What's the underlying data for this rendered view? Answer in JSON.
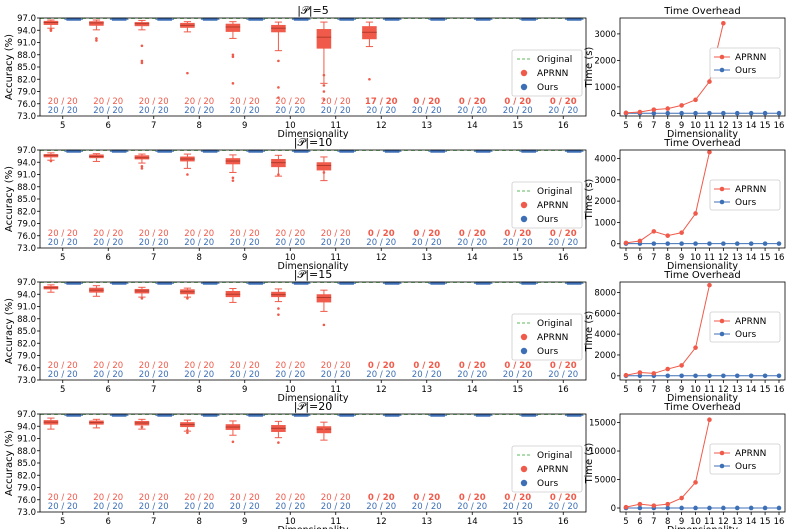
{
  "chart_data": {
    "type": "box_and_line_grid",
    "rows": [
      {
        "box": {
          "title": "|𝒫|=5",
          "xlabel": "Dimensionality",
          "ylabel": "Accuracy (%)",
          "yticks": [
            "73.0",
            "76.0",
            "79.0",
            "82.0",
            "85.0",
            "88.0",
            "91.0",
            "94.0",
            "97.0"
          ],
          "ylim": [
            73.0,
            97.0
          ],
          "categories": [
            5,
            6,
            7,
            8,
            9,
            10,
            11,
            12,
            13,
            14,
            15,
            16
          ],
          "original": 96.9,
          "aprnn": [
            {
              "med": 95.9,
              "q1": 95.3,
              "q3": 96.3,
              "lo": 94.5,
              "hi": 96.5,
              "fl": [
                94.2,
                93.9
              ]
            },
            {
              "med": 95.8,
              "q1": 95.1,
              "q3": 96.2,
              "lo": 94.1,
              "hi": 96.5,
              "fl": [
                92.0,
                91.5
              ]
            },
            {
              "med": 95.6,
              "q1": 95.0,
              "q3": 96.0,
              "lo": 94.1,
              "hi": 96.4,
              "fl": [
                90.2,
                86.5,
                86.0
              ]
            },
            {
              "med": 95.2,
              "q1": 94.6,
              "q3": 95.8,
              "lo": 93.6,
              "hi": 96.1,
              "fl": [
                83.5
              ]
            },
            {
              "med": 94.8,
              "q1": 93.6,
              "q3": 95.6,
              "lo": 92.0,
              "hi": 96.1,
              "fl": [
                88.0,
                87.5,
                81.0
              ]
            },
            {
              "med": 94.5,
              "q1": 93.5,
              "q3": 95.3,
              "lo": 89.0,
              "hi": 96.0,
              "fl": [
                86.5,
                80.0,
                77.5
              ]
            },
            {
              "med": 92.3,
              "q1": 89.5,
              "q3": 94.3,
              "lo": 81.0,
              "hi": 96.0,
              "fl": [
                80.5,
                79.0,
                77.0,
                83.0
              ]
            },
            {
              "med": 93.5,
              "q1": 91.8,
              "q3": 95.0,
              "lo": 90.0,
              "hi": 96.0,
              "fl": [
                82.0
              ]
            }
          ],
          "ours_med": 96.7,
          "aprnn_counts": [
            "20 / 20",
            "20 / 20",
            "20 / 20",
            "20 / 20",
            "20 / 20",
            "20 / 20",
            "20 / 20",
            "17 / 20",
            "0 / 20",
            "0 / 20",
            "0 / 20",
            "0 / 20"
          ],
          "ours_counts": [
            "20 / 20",
            "20 / 20",
            "20 / 20",
            "20 / 20",
            "20 / 20",
            "20 / 20",
            "20 / 20",
            "20 / 20",
            "20 / 20",
            "20 / 20",
            "20 / 20",
            "20 / 20"
          ],
          "legend": [
            "Original",
            "APRNN",
            "Ours"
          ]
        },
        "time": {
          "title": "Time Overhead",
          "xlabel": "Dimensionality",
          "ylabel": "Time (s)",
          "yticks": [
            0,
            1000,
            2000,
            3000
          ],
          "ylim": [
            -100,
            3600
          ],
          "x": [
            5,
            6,
            7,
            8,
            9,
            10,
            11,
            12,
            13,
            14,
            15,
            16
          ],
          "aprnn": [
            20,
            50,
            140,
            180,
            300,
            510,
            1200,
            3400
          ],
          "ours": [
            5,
            5,
            5,
            5,
            5,
            5,
            5,
            5,
            5,
            5,
            5,
            5
          ],
          "legend": [
            "APRNN",
            "Ours"
          ]
        }
      },
      {
        "box": {
          "title": "|𝒫|=10",
          "xlabel": "Dimensionality",
          "ylabel": "Accuracy (%)",
          "yticks": [
            "73.0",
            "76.0",
            "79.0",
            "82.0",
            "85.0",
            "88.0",
            "91.0",
            "94.0",
            "97.0"
          ],
          "ylim": [
            73.0,
            97.0
          ],
          "categories": [
            5,
            6,
            7,
            8,
            9,
            10,
            11,
            12,
            13,
            14,
            15,
            16
          ],
          "original": 96.9,
          "aprnn": [
            {
              "med": 95.7,
              "q1": 95.2,
              "q3": 96.0,
              "lo": 94.5,
              "hi": 96.3,
              "fl": [
                94.3
              ]
            },
            {
              "med": 95.4,
              "q1": 95.0,
              "q3": 95.9,
              "lo": 94.2,
              "hi": 96.1,
              "fl": []
            },
            {
              "med": 95.1,
              "q1": 94.7,
              "q3": 95.7,
              "lo": 93.8,
              "hi": 96.0,
              "fl": [
                93.0,
                92.5
              ]
            },
            {
              "med": 94.8,
              "q1": 94.2,
              "q3": 95.4,
              "lo": 92.5,
              "hi": 96.0,
              "fl": [
                91.0
              ]
            },
            {
              "med": 94.3,
              "q1": 93.5,
              "q3": 95.0,
              "lo": 91.5,
              "hi": 95.8,
              "fl": [
                90.2,
                89.5
              ]
            },
            {
              "med": 93.9,
              "q1": 92.8,
              "q3": 94.8,
              "lo": 90.6,
              "hi": 95.7,
              "fl": [
                91.0
              ]
            },
            {
              "med": 93.2,
              "q1": 92.0,
              "q3": 94.0,
              "lo": 89.5,
              "hi": 95.3,
              "fl": [
                91.5
              ]
            }
          ],
          "ours_med": 96.7,
          "aprnn_counts": [
            "20 / 20",
            "20 / 20",
            "20 / 20",
            "20 / 20",
            "20 / 20",
            "20 / 20",
            "20 / 20",
            "0 / 20",
            "0 / 20",
            "0 / 20",
            "0 / 20",
            "0 / 20"
          ],
          "ours_counts": [
            "20 / 20",
            "20 / 20",
            "20 / 20",
            "20 / 20",
            "20 / 20",
            "20 / 20",
            "20 / 20",
            "20 / 20",
            "20 / 20",
            "20 / 20",
            "20 / 20",
            "20 / 20"
          ],
          "legend": [
            "Original",
            "APRNN",
            "Ours"
          ]
        },
        "time": {
          "title": "Time Overhead",
          "xlabel": "Dimensionality",
          "ylabel": "Time (s)",
          "yticks": [
            0,
            1000,
            2000,
            3000,
            4000
          ],
          "ylim": [
            -200,
            4400
          ],
          "x": [
            5,
            6,
            7,
            8,
            9,
            10,
            11,
            12,
            13,
            14,
            15,
            16
          ],
          "aprnn": [
            40,
            130,
            580,
            380,
            520,
            1420,
            4300
          ],
          "ours": [
            5,
            5,
            5,
            5,
            5,
            5,
            5,
            5,
            5,
            5,
            5,
            5
          ],
          "legend": [
            "APRNN",
            "Ours"
          ]
        }
      },
      {
        "box": {
          "title": "|𝒫|=15",
          "xlabel": "Dimensionality",
          "ylabel": "Accuracy (%)",
          "yticks": [
            "73.0",
            "76.0",
            "79.0",
            "82.0",
            "85.0",
            "88.0",
            "91.0",
            "94.0",
            "97.0"
          ],
          "ylim": [
            73.0,
            97.0
          ],
          "categories": [
            5,
            6,
            7,
            8,
            9,
            10,
            11,
            12,
            13,
            14,
            15,
            16
          ],
          "original": 96.9,
          "aprnn": [
            {
              "med": 95.6,
              "q1": 95.2,
              "q3": 96.0,
              "lo": 94.5,
              "hi": 96.3,
              "fl": []
            },
            {
              "med": 95.0,
              "q1": 94.4,
              "q3": 95.6,
              "lo": 93.5,
              "hi": 96.1,
              "fl": []
            },
            {
              "med": 94.8,
              "q1": 94.2,
              "q3": 95.3,
              "lo": 93.3,
              "hi": 95.7,
              "fl": [
                93.0
              ]
            },
            {
              "med": 94.6,
              "q1": 94.0,
              "q3": 95.2,
              "lo": 93.3,
              "hi": 95.5,
              "fl": [
                93.0
              ]
            },
            {
              "med": 94.0,
              "q1": 93.3,
              "q3": 94.8,
              "lo": 92.0,
              "hi": 95.4,
              "fl": []
            },
            {
              "med": 93.9,
              "q1": 93.3,
              "q3": 94.6,
              "lo": 92.2,
              "hi": 95.3,
              "fl": [
                90.5,
                89.0
              ]
            },
            {
              "med": 93.2,
              "q1": 92.0,
              "q3": 94.0,
              "lo": 89.8,
              "hi": 95.0,
              "fl": [
                86.5
              ]
            }
          ],
          "ours_med": 96.7,
          "aprnn_counts": [
            "20 / 20",
            "20 / 20",
            "20 / 20",
            "20 / 20",
            "20 / 20",
            "20 / 20",
            "20 / 20",
            "0 / 20",
            "0 / 20",
            "0 / 20",
            "0 / 20",
            "0 / 20"
          ],
          "ours_counts": [
            "20 / 20",
            "20 / 20",
            "20 / 20",
            "20 / 20",
            "20 / 20",
            "20 / 20",
            "20 / 20",
            "20 / 20",
            "20 / 20",
            "20 / 20",
            "20 / 20",
            "20 / 20"
          ],
          "legend": [
            "Original",
            "APRNN",
            "Ours"
          ]
        },
        "time": {
          "title": "Time Overhead",
          "xlabel": "Dimensionality",
          "ylabel": "Time (s)",
          "yticks": [
            0,
            2000,
            4000,
            6000,
            8000
          ],
          "ylim": [
            -400,
            9000
          ],
          "x": [
            5,
            6,
            7,
            8,
            9,
            10,
            11,
            12,
            13,
            14,
            15,
            16
          ],
          "aprnn": [
            60,
            320,
            230,
            650,
            1000,
            2700,
            8700
          ],
          "ours": [
            5,
            5,
            5,
            5,
            5,
            5,
            5,
            5,
            5,
            5,
            5,
            5
          ],
          "legend": [
            "APRNN",
            "Ours"
          ]
        }
      },
      {
        "box": {
          "title": "|𝒫|=20",
          "xlabel": "Dimensionality",
          "ylabel": "Accuracy (%)",
          "yticks": [
            "73.0",
            "76.0",
            "79.0",
            "82.0",
            "85.0",
            "88.0",
            "91.0",
            "94.0",
            "97.0"
          ],
          "ylim": [
            73.0,
            97.0
          ],
          "categories": [
            5,
            6,
            7,
            8,
            9,
            10,
            11,
            12,
            13,
            14,
            15,
            16
          ],
          "original": 96.9,
          "aprnn": [
            {
              "med": 95.0,
              "q1": 94.4,
              "q3": 95.5,
              "lo": 93.3,
              "hi": 96.0,
              "fl": []
            },
            {
              "med": 94.9,
              "q1": 94.4,
              "q3": 95.4,
              "lo": 93.6,
              "hi": 95.7,
              "fl": []
            },
            {
              "med": 94.8,
              "q1": 94.2,
              "q3": 95.3,
              "lo": 93.3,
              "hi": 95.7,
              "fl": [
                93.8
              ]
            },
            {
              "med": 94.4,
              "q1": 93.8,
              "q3": 95.0,
              "lo": 92.8,
              "hi": 95.5,
              "fl": [
                93.0,
                92.4
              ]
            },
            {
              "med": 93.8,
              "q1": 93.1,
              "q3": 94.5,
              "lo": 91.8,
              "hi": 95.3,
              "fl": [
                90.2
              ]
            },
            {
              "med": 93.5,
              "q1": 92.6,
              "q3": 94.3,
              "lo": 91.2,
              "hi": 95.2,
              "fl": [
                90.0
              ]
            },
            {
              "med": 93.3,
              "q1": 92.3,
              "q3": 94.0,
              "lo": 90.6,
              "hi": 95.0,
              "fl": [
                93.5
              ]
            }
          ],
          "ours_med": 96.7,
          "aprnn_counts": [
            "20 / 20",
            "20 / 20",
            "20 / 20",
            "20 / 20",
            "20 / 20",
            "20 / 20",
            "20 / 20",
            "0 / 20",
            "0 / 20",
            "0 / 20",
            "0 / 20",
            "0 / 20"
          ],
          "ours_counts": [
            "20 / 20",
            "20 / 20",
            "20 / 20",
            "20 / 20",
            "20 / 20",
            "20 / 20",
            "20 / 20",
            "20 / 20",
            "20 / 20",
            "20 / 20",
            "20 / 20",
            "20 / 20"
          ],
          "legend": [
            "Original",
            "APRNN",
            "Ours"
          ]
        },
        "time": {
          "title": "Time Overhead",
          "xlabel": "Dimensionality",
          "ylabel": "Time (s)",
          "yticks": [
            0,
            5000,
            10000,
            15000
          ],
          "ylim": [
            -700,
            16500
          ],
          "x": [
            5,
            6,
            7,
            8,
            9,
            10,
            11,
            12,
            13,
            14,
            15,
            16
          ],
          "aprnn": [
            150,
            680,
            420,
            680,
            1750,
            4500,
            15500
          ],
          "ours": [
            5,
            5,
            5,
            5,
            5,
            5,
            5,
            5,
            5,
            5,
            5,
            5
          ],
          "legend": [
            "APRNN",
            "Ours"
          ]
        }
      }
    ]
  },
  "colors": {
    "aprnn": "#f05a4a",
    "ours": "#3d6fb6",
    "original": "#5cb85c",
    "axis": "#000000"
  }
}
